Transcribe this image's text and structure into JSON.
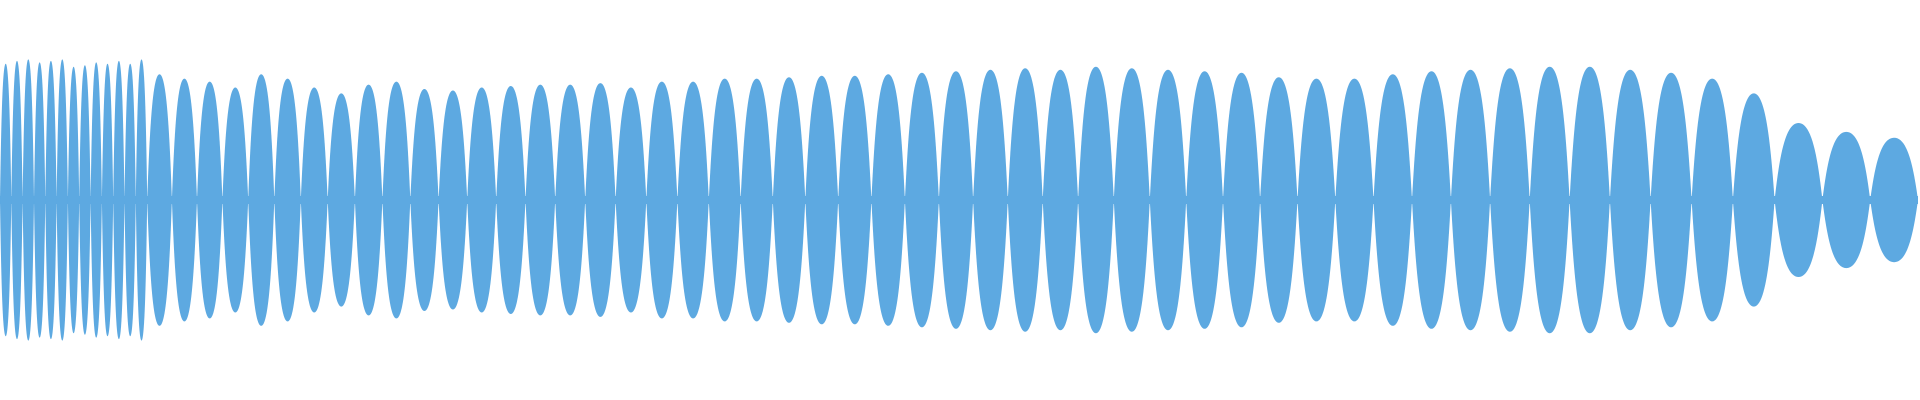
{
  "waveform": {
    "color": "#5DA9E1",
    "background": "#FFFFFF",
    "envelope": {
      "description_free_values": true,
      "levels": [
        0.92,
        0.94,
        0.95,
        0.93,
        0.94,
        0.95,
        0.9,
        0.91,
        0.93,
        0.92,
        0.94,
        0.92,
        0.95,
        0.85,
        0.82,
        0.8,
        0.76,
        0.85,
        0.82,
        0.76,
        0.72,
        0.78,
        0.8,
        0.75,
        0.74,
        0.76,
        0.77,
        0.78,
        0.78,
        0.79,
        0.76,
        0.8,
        0.8,
        0.82,
        0.82,
        0.83,
        0.84,
        0.84,
        0.85,
        0.86,
        0.87,
        0.88,
        0.89,
        0.88,
        0.9,
        0.89,
        0.88,
        0.87,
        0.86,
        0.83,
        0.82,
        0.82,
        0.85,
        0.87,
        0.88,
        0.89,
        0.9,
        0.9,
        0.88,
        0.86,
        0.82,
        0.72,
        0.52,
        0.46,
        0.42
      ]
    }
  }
}
